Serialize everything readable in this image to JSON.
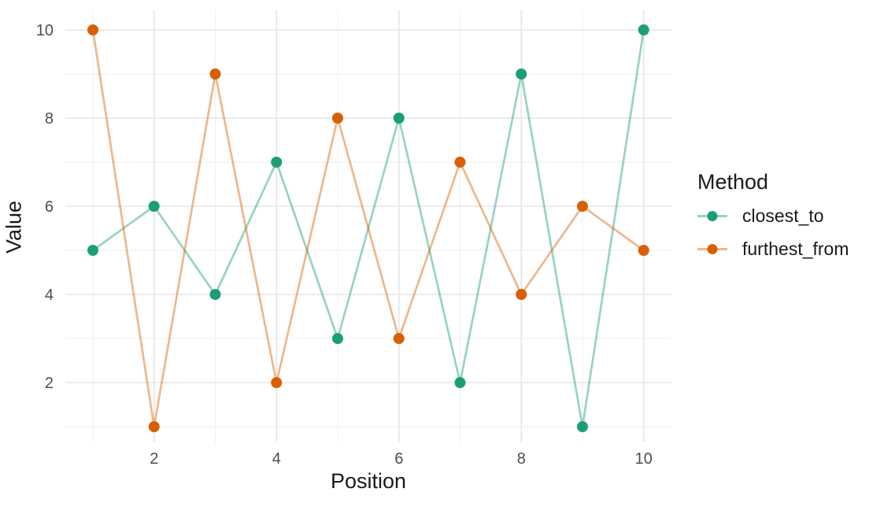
{
  "chart_data": {
    "type": "line",
    "title": "",
    "xlabel": "Position",
    "ylabel": "Value",
    "x": [
      1,
      2,
      3,
      4,
      5,
      6,
      7,
      8,
      9,
      10
    ],
    "series": [
      {
        "name": "closest_to",
        "color": "#1b9e77",
        "values": [
          5,
          6,
          4,
          7,
          3,
          8,
          2,
          9,
          1,
          10
        ]
      },
      {
        "name": "furthest_from",
        "color": "#d95f02",
        "values": [
          10,
          1,
          9,
          2,
          8,
          3,
          7,
          4,
          6,
          5
        ]
      }
    ],
    "x_ticks": [
      2,
      4,
      6,
      8,
      10
    ],
    "y_ticks": [
      2,
      4,
      6,
      8,
      10
    ],
    "x_minor": [
      1,
      3,
      5,
      7,
      9
    ],
    "y_minor": [
      1,
      3,
      5,
      7,
      9
    ],
    "xlim": [
      0.55,
      10.45
    ],
    "ylim": [
      0.55,
      10.45
    ],
    "grid": true,
    "legend_title": "Method",
    "legend_position": "right",
    "marker": "circle",
    "line_opacity": 0.45,
    "colors": {
      "grid_major": "#e5e5e5",
      "grid_minor": "#efefef",
      "tick_text": "#4d4d4d",
      "axis_title": "#1a1a1a",
      "background": "#ffffff"
    }
  }
}
